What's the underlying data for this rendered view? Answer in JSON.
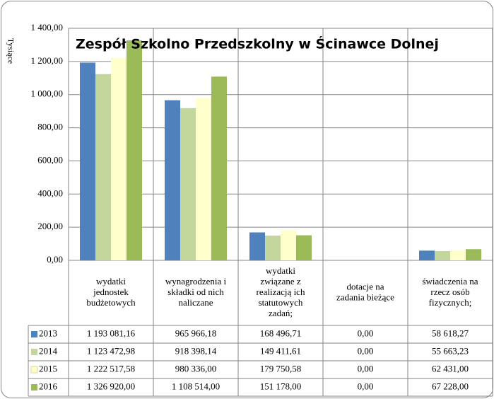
{
  "chart_data": {
    "type": "bar",
    "title": "Zespół Szkolno Przedszkolny w Ścinawce Dolnej",
    "y_label": "Tysiące",
    "categories": [
      "wydatki jednostek budżetowych",
      "wynagrodzenia i składki od nich naliczane",
      "wydatki związane z realizacją ich statutowych zadań;",
      "dotacje na zadania bieżące",
      "świadczenia na rzecz osób fizycznych;"
    ],
    "series": [
      {
        "name": "2013",
        "color": "#4f81bd",
        "values": [
          1193.08116,
          965.96618,
          168.49671,
          0,
          58.61827
        ],
        "value_labels": [
          "1 193 081,16",
          "965 966,18",
          "168 496,71",
          "0,00",
          "58 618,27"
        ]
      },
      {
        "name": "2014",
        "color": "#c3d69b",
        "values": [
          1123.47298,
          918.39814,
          149.41161,
          0,
          55.66323
        ],
        "value_labels": [
          "1 123 472,98",
          "918 398,14",
          "149 411,61",
          "0,00",
          "55 663,23"
        ]
      },
      {
        "name": "2015",
        "color": "#ffffcc",
        "values": [
          1222.51758,
          980.336,
          179.75058,
          0,
          62.431
        ],
        "value_labels": [
          "1 222 517,58",
          "980 336,00",
          "179 750,58",
          "0,00",
          "62 431,00"
        ]
      },
      {
        "name": "2016",
        "color": "#9bbb59",
        "values": [
          1326.92,
          1108.514,
          151.178,
          0,
          67.228
        ],
        "value_labels": [
          "1 326 920,00",
          "1 108 514,00",
          "151 178,00",
          "0,00",
          "67 228,00"
        ]
      }
    ],
    "ylim": [
      0,
      1400
    ],
    "yticks": [
      {
        "value": 0,
        "label": "0,00"
      },
      {
        "value": 200,
        "label": "200,00"
      },
      {
        "value": 400,
        "label": "400,00"
      },
      {
        "value": 600,
        "label": "600,00"
      },
      {
        "value": 800,
        "label": "800,00"
      },
      {
        "value": 1000,
        "label": "1 000,00"
      },
      {
        "value": 1200,
        "label": "1 200,00"
      },
      {
        "value": 1400,
        "label": "1 400,00"
      }
    ],
    "grid": true
  }
}
